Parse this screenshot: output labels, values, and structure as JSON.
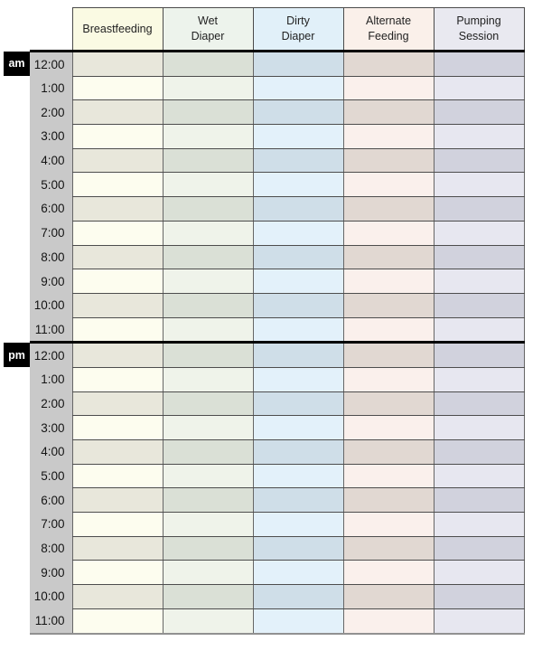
{
  "table": {
    "time_gutter": {
      "background": "#c9c9c9"
    },
    "ampm_box": {
      "background": "#000000",
      "text_color": "#ffffff"
    },
    "columns": [
      {
        "id": "breastfeeding",
        "label": "Breastfeeding",
        "header_bg": "#fafae3",
        "row_even_bg": "#e8e7db",
        "row_odd_bg": "#fdfdef"
      },
      {
        "id": "wet-diaper",
        "label": "Wet\nDiaper",
        "header_bg": "#edf3ec",
        "row_even_bg": "#dae0d6",
        "row_odd_bg": "#eff3ea"
      },
      {
        "id": "dirty-diaper",
        "label": "Dirty\nDiaper",
        "header_bg": "#e1f0f9",
        "row_even_bg": "#cfdee8",
        "row_odd_bg": "#e3f1fa"
      },
      {
        "id": "alternate-feeding",
        "label": "Alternate\nFeeding",
        "header_bg": "#faf0ea",
        "row_even_bg": "#e1d8d2",
        "row_odd_bg": "#faf0ec"
      },
      {
        "id": "pumping-session",
        "label": "Pumping\nSession",
        "header_bg": "#e9e9f0",
        "row_even_bg": "#d1d2dd",
        "row_odd_bg": "#e7e7f0"
      }
    ],
    "sections": [
      {
        "label": "am",
        "times": [
          "12:00",
          "1:00",
          "2:00",
          "3:00",
          "4:00",
          "5:00",
          "6:00",
          "7:00",
          "8:00",
          "9:00",
          "10:00",
          "11:00"
        ]
      },
      {
        "label": "pm",
        "times": [
          "12:00",
          "1:00",
          "2:00",
          "3:00",
          "4:00",
          "5:00",
          "6:00",
          "7:00",
          "8:00",
          "9:00",
          "10:00",
          "11:00"
        ]
      }
    ]
  }
}
